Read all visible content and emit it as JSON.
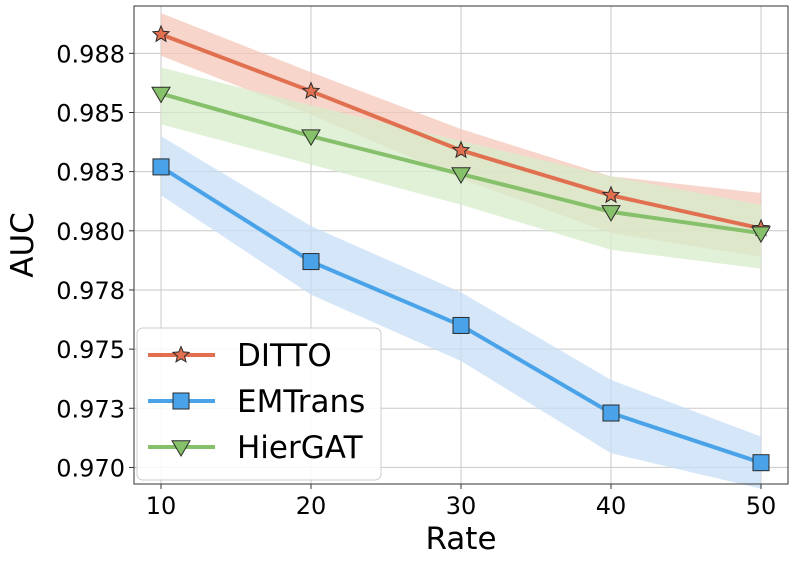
{
  "chart_data": {
    "type": "line",
    "xlabel": "Rate",
    "ylabel": "AUC",
    "x": [
      10,
      20,
      30,
      40,
      50
    ],
    "xlim": [
      8.2,
      51.8
    ],
    "ylim": [
      0.9693,
      0.9895
    ],
    "x_ticks": [
      "10",
      "20",
      "30",
      "40",
      "50"
    ],
    "y_ticks": [
      {
        "value": 0.97,
        "label": "0.970"
      },
      {
        "value": 0.9725,
        "label": "0.973"
      },
      {
        "value": 0.975,
        "label": "0.975"
      },
      {
        "value": 0.9775,
        "label": "0.978"
      },
      {
        "value": 0.98,
        "label": "0.980"
      },
      {
        "value": 0.9825,
        "label": "0.983"
      },
      {
        "value": 0.985,
        "label": "0.985"
      },
      {
        "value": 0.9875,
        "label": "0.988"
      }
    ],
    "grid": true,
    "legend_position": "bottom-left",
    "series": [
      {
        "name": "DITTO",
        "color": "#e07050",
        "band_color": "#f4c7b8",
        "marker": "star",
        "values": [
          0.9883,
          0.9859,
          0.9834,
          0.9815,
          0.9801
        ],
        "lower": [
          0.9874,
          0.9849,
          0.9822,
          0.9799,
          0.9789
        ],
        "upper": [
          0.9892,
          0.9867,
          0.9843,
          0.9823,
          0.9816
        ]
      },
      {
        "name": "EMTrans",
        "color": "#4aa3e8",
        "band_color": "#c6def5",
        "marker": "square",
        "values": [
          0.9827,
          0.9787,
          0.976,
          0.9723,
          0.9702
        ],
        "lower": [
          0.9815,
          0.9773,
          0.9745,
          0.9706,
          0.9691
        ],
        "upper": [
          0.984,
          0.9802,
          0.9774,
          0.9737,
          0.9713
        ]
      },
      {
        "name": "HierGAT",
        "color": "#86c06b",
        "band_color": "#d7eccb",
        "marker": "triangle-down",
        "values": [
          0.9858,
          0.984,
          0.9824,
          0.9808,
          0.9799
        ],
        "lower": [
          0.9845,
          0.9828,
          0.9811,
          0.9792,
          0.9784
        ],
        "upper": [
          0.9869,
          0.9853,
          0.9838,
          0.9823,
          0.9811
        ]
      }
    ]
  }
}
